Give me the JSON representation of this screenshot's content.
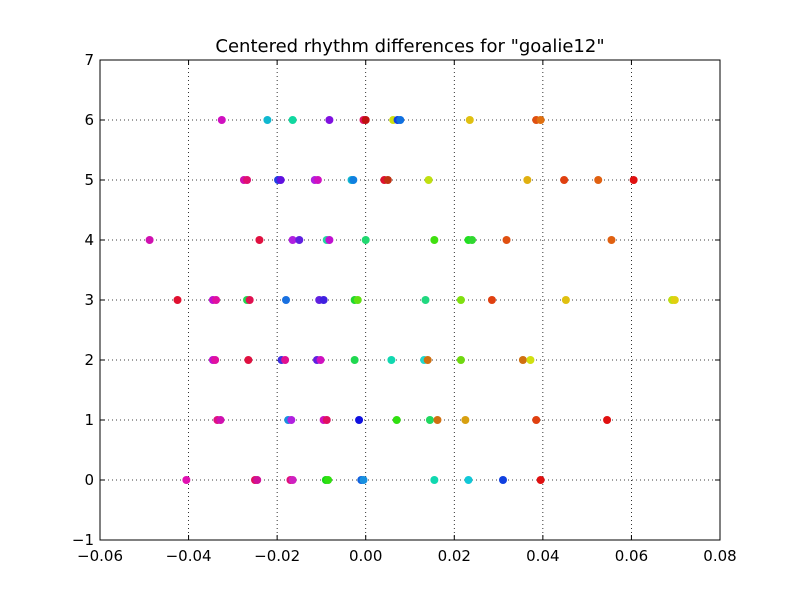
{
  "chart_data": {
    "type": "scatter",
    "title": "Centered rhythm differences for \"goalie12\"",
    "xlabel": "",
    "ylabel": "",
    "xlim": [
      -0.06,
      0.08
    ],
    "ylim": [
      -1,
      7
    ],
    "grid": true,
    "x_ticks": [
      -0.06,
      -0.04,
      -0.02,
      0.0,
      0.02,
      0.04,
      0.06,
      0.08
    ],
    "x_tick_labels": [
      "−0.06",
      "−0.04",
      "−0.02",
      "0.00",
      "0.02",
      "0.04",
      "0.06",
      "0.08"
    ],
    "y_ticks": [
      -1,
      0,
      1,
      2,
      3,
      4,
      5,
      6,
      7
    ],
    "y_tick_labels": [
      "−1",
      "0",
      "1",
      "2",
      "3",
      "4",
      "5",
      "6",
      "7"
    ],
    "points": [
      {
        "x": -0.0405,
        "y": 0,
        "color": "#e010b0"
      },
      {
        "x": -0.025,
        "y": 0,
        "color": "#e01060"
      },
      {
        "x": -0.0245,
        "y": 0,
        "color": "#d01098"
      },
      {
        "x": -0.017,
        "y": 0,
        "color": "#e01078"
      },
      {
        "x": -0.0165,
        "y": 0,
        "color": "#d020c0"
      },
      {
        "x": -0.009,
        "y": 0,
        "color": "#18d818"
      },
      {
        "x": -0.0085,
        "y": 0,
        "color": "#30e010"
      },
      {
        "x": -0.001,
        "y": 0,
        "color": "#1060e0"
      },
      {
        "x": -0.0005,
        "y": 0,
        "color": "#1890e0"
      },
      {
        "x": 0.0155,
        "y": 0,
        "color": "#10d8b0"
      },
      {
        "x": 0.0232,
        "y": 0,
        "color": "#10c8d8"
      },
      {
        "x": 0.031,
        "y": 0,
        "color": "#1040e0"
      },
      {
        "x": 0.0395,
        "y": 0,
        "color": "#e01010"
      },
      {
        "x": -0.0335,
        "y": 1,
        "color": "#e01080"
      },
      {
        "x": -0.0328,
        "y": 1,
        "color": "#d010b0"
      },
      {
        "x": -0.0175,
        "y": 1,
        "color": "#1890e0"
      },
      {
        "x": -0.0168,
        "y": 1,
        "color": "#b020e0"
      },
      {
        "x": -0.0095,
        "y": 1,
        "color": "#d010c0"
      },
      {
        "x": -0.0088,
        "y": 1,
        "color": "#e01060"
      },
      {
        "x": -0.0015,
        "y": 1,
        "color": "#1010e0"
      },
      {
        "x": 0.007,
        "y": 1,
        "color": "#30e010"
      },
      {
        "x": 0.0145,
        "y": 1,
        "color": "#20d860"
      },
      {
        "x": 0.0162,
        "y": 1,
        "color": "#d07010"
      },
      {
        "x": 0.0225,
        "y": 1,
        "color": "#d8a010"
      },
      {
        "x": 0.0385,
        "y": 1,
        "color": "#e04010"
      },
      {
        "x": 0.0545,
        "y": 1,
        "color": "#e01010"
      },
      {
        "x": -0.0345,
        "y": 2,
        "color": "#c010d0"
      },
      {
        "x": -0.034,
        "y": 2,
        "color": "#e010a0"
      },
      {
        "x": -0.0265,
        "y": 2,
        "color": "#e01040"
      },
      {
        "x": -0.019,
        "y": 2,
        "color": "#4030e0"
      },
      {
        "x": -0.0182,
        "y": 2,
        "color": "#e01090"
      },
      {
        "x": -0.011,
        "y": 2,
        "color": "#6020e0"
      },
      {
        "x": -0.0102,
        "y": 2,
        "color": "#d010c0"
      },
      {
        "x": -0.0025,
        "y": 2,
        "color": "#20d850"
      },
      {
        "x": 0.0058,
        "y": 2,
        "color": "#10d8b0"
      },
      {
        "x": 0.0132,
        "y": 2,
        "color": "#20d8d0"
      },
      {
        "x": 0.014,
        "y": 2,
        "color": "#d07010"
      },
      {
        "x": 0.0215,
        "y": 2,
        "color": "#70d810"
      },
      {
        "x": 0.0355,
        "y": 2,
        "color": "#d07010"
      },
      {
        "x": 0.0372,
        "y": 2,
        "color": "#d0e010"
      },
      {
        "x": -0.0425,
        "y": 3,
        "color": "#e01030"
      },
      {
        "x": -0.0345,
        "y": 3,
        "color": "#c010d0"
      },
      {
        "x": -0.0338,
        "y": 3,
        "color": "#e010a0"
      },
      {
        "x": -0.0268,
        "y": 3,
        "color": "#20d850"
      },
      {
        "x": -0.0262,
        "y": 3,
        "color": "#e01050"
      },
      {
        "x": -0.018,
        "y": 3,
        "color": "#1870e0"
      },
      {
        "x": -0.0105,
        "y": 3,
        "color": "#6020e0"
      },
      {
        "x": -0.0095,
        "y": 3,
        "color": "#4020e0"
      },
      {
        "x": -0.0025,
        "y": 3,
        "color": "#20d830"
      },
      {
        "x": -0.0018,
        "y": 3,
        "color": "#60e010"
      },
      {
        "x": 0.0135,
        "y": 3,
        "color": "#20d880"
      },
      {
        "x": 0.0215,
        "y": 3,
        "color": "#80e010"
      },
      {
        "x": 0.0285,
        "y": 3,
        "color": "#e04010"
      },
      {
        "x": 0.0452,
        "y": 3,
        "color": "#e0c010"
      },
      {
        "x": 0.0692,
        "y": 3,
        "color": "#c0e010"
      },
      {
        "x": 0.0698,
        "y": 3,
        "color": "#e0d010"
      },
      {
        "x": -0.0488,
        "y": 4,
        "color": "#d010b0"
      },
      {
        "x": -0.024,
        "y": 4,
        "color": "#e01040"
      },
      {
        "x": -0.0165,
        "y": 4,
        "color": "#b020e0"
      },
      {
        "x": -0.015,
        "y": 4,
        "color": "#6020e0"
      },
      {
        "x": -0.0088,
        "y": 4,
        "color": "#20d8a0"
      },
      {
        "x": -0.0082,
        "y": 4,
        "color": "#c010d0"
      },
      {
        "x": 0.0,
        "y": 4,
        "color": "#20d870"
      },
      {
        "x": 0.0155,
        "y": 4,
        "color": "#40e010"
      },
      {
        "x": 0.0232,
        "y": 4,
        "color": "#20e020"
      },
      {
        "x": 0.024,
        "y": 4,
        "color": "#30d830"
      },
      {
        "x": 0.0318,
        "y": 4,
        "color": "#e05010"
      },
      {
        "x": 0.0555,
        "y": 4,
        "color": "#e06010"
      },
      {
        "x": -0.0275,
        "y": 5,
        "color": "#d010b0"
      },
      {
        "x": -0.0268,
        "y": 5,
        "color": "#e01070"
      },
      {
        "x": -0.0198,
        "y": 5,
        "color": "#2040e0"
      },
      {
        "x": -0.0192,
        "y": 5,
        "color": "#6010e0"
      },
      {
        "x": -0.0115,
        "y": 5,
        "color": "#b020e0"
      },
      {
        "x": -0.0108,
        "y": 5,
        "color": "#d010c0"
      },
      {
        "x": -0.0032,
        "y": 5,
        "color": "#10b8d0"
      },
      {
        "x": -0.0028,
        "y": 5,
        "color": "#1080e0"
      },
      {
        "x": 0.0042,
        "y": 5,
        "color": "#e01030"
      },
      {
        "x": 0.005,
        "y": 5,
        "color": "#c03010"
      },
      {
        "x": 0.0142,
        "y": 5,
        "color": "#c0e010"
      },
      {
        "x": 0.0365,
        "y": 5,
        "color": "#e0b010"
      },
      {
        "x": 0.0448,
        "y": 5,
        "color": "#e04010"
      },
      {
        "x": 0.0525,
        "y": 5,
        "color": "#e06010"
      },
      {
        "x": 0.0605,
        "y": 5,
        "color": "#e01010"
      },
      {
        "x": -0.0325,
        "y": 6,
        "color": "#d010c0"
      },
      {
        "x": -0.0222,
        "y": 6,
        "color": "#10b8d0"
      },
      {
        "x": -0.0165,
        "y": 6,
        "color": "#10d8a0"
      },
      {
        "x": -0.0082,
        "y": 6,
        "color": "#8010e0"
      },
      {
        "x": -0.0005,
        "y": 6,
        "color": "#e01060"
      },
      {
        "x": 0.0,
        "y": 6,
        "color": "#c01010"
      },
      {
        "x": 0.0062,
        "y": 6,
        "color": "#d0e010"
      },
      {
        "x": 0.0072,
        "y": 6,
        "color": "#1040e0"
      },
      {
        "x": 0.0078,
        "y": 6,
        "color": "#1070e0"
      },
      {
        "x": 0.0235,
        "y": 6,
        "color": "#e0c010"
      },
      {
        "x": 0.0385,
        "y": 6,
        "color": "#e05010"
      },
      {
        "x": 0.0395,
        "y": 6,
        "color": "#e07010"
      }
    ]
  }
}
